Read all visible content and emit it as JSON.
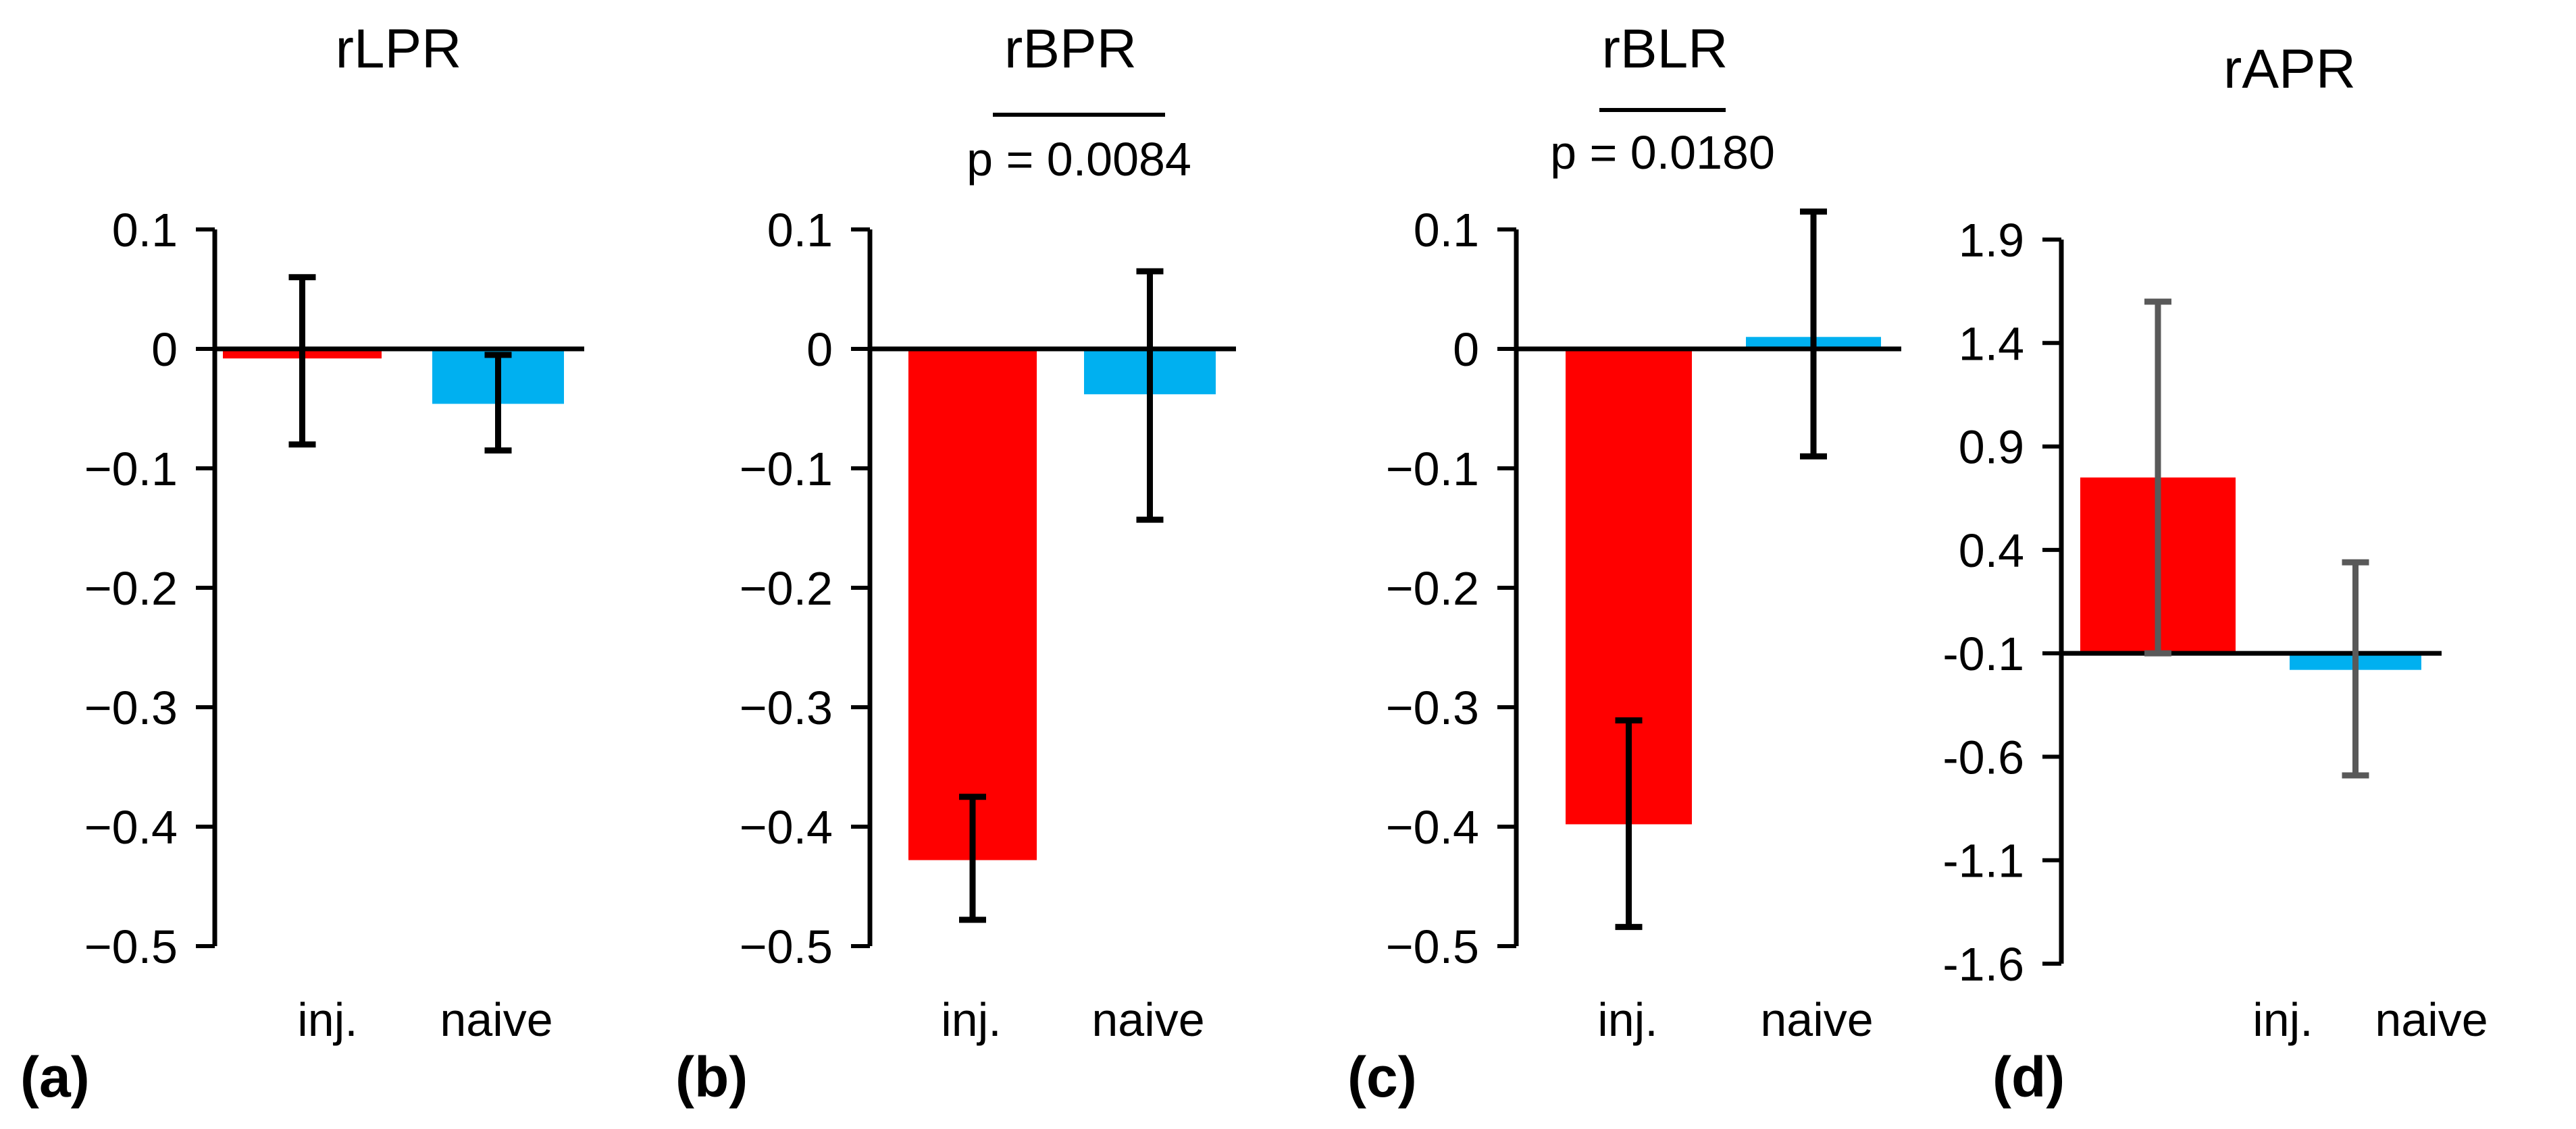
{
  "colors": {
    "injured": "#ff0000",
    "naive": "#00b0f0",
    "axis": "#000000",
    "errorbar_dark": "#000000",
    "errorbar_grey": "#595959"
  },
  "chart_data": [
    {
      "type": "bar",
      "panel_label": "(a)",
      "title": "rLPR",
      "categories": [
        "inj.",
        "naive"
      ],
      "values": [
        -0.008,
        -0.046
      ],
      "errors": [
        [
          -0.08,
          0.06
        ],
        [
          -0.085,
          -0.005
        ]
      ],
      "ylim": [
        -0.5,
        0.1
      ],
      "yticks": [
        0.1,
        0,
        -0.1,
        -0.2,
        -0.3,
        -0.4,
        -0.5
      ],
      "ytick_labels": [
        "0.1",
        "0",
        "−0.1",
        "−0.2",
        "−0.3",
        "−0.4",
        "−0.5"
      ],
      "significance": null
    },
    {
      "type": "bar",
      "panel_label": "(b)",
      "title": "rBPR",
      "categories": [
        "inj.",
        "naive"
      ],
      "values": [
        -0.428,
        -0.038
      ],
      "errors": [
        [
          -0.478,
          -0.375
        ],
        [
          -0.143,
          0.065
        ]
      ],
      "ylim": [
        -0.5,
        0.1
      ],
      "yticks": [
        0.1,
        0,
        -0.1,
        -0.2,
        -0.3,
        -0.4,
        -0.5
      ],
      "ytick_labels": [
        "0.1",
        "0",
        "−0.1",
        "−0.2",
        "−0.3",
        "−0.4",
        "−0.5"
      ],
      "significance": {
        "text": "p = 0.0084"
      }
    },
    {
      "type": "bar",
      "panel_label": "(c)",
      "title": "rBLR",
      "categories": [
        "inj.",
        "naive"
      ],
      "values": [
        -0.398,
        0.01
      ],
      "errors": [
        [
          -0.484,
          -0.311
        ],
        [
          -0.09,
          0.115
        ]
      ],
      "ylim": [
        -0.5,
        0.1
      ],
      "yticks": [
        0.1,
        0,
        -0.1,
        -0.2,
        -0.3,
        -0.4,
        -0.5
      ],
      "ytick_labels": [
        "0.1",
        "0",
        "−0.1",
        "−0.2",
        "−0.3",
        "−0.4",
        "−0.5"
      ],
      "significance": {
        "text": "p = 0.0180"
      }
    },
    {
      "type": "bar",
      "panel_label": "(d)",
      "title": "rAPR",
      "categories": [
        "inj.",
        "naive"
      ],
      "values": [
        0.75,
        -0.18
      ],
      "errors": [
        [
          -0.1,
          1.6
        ],
        [
          -0.69,
          0.34
        ]
      ],
      "ylim": [
        -1.6,
        1.9
      ],
      "yticks": [
        1.9,
        1.4,
        0.9,
        0.4,
        -0.1,
        -0.6,
        -1.1,
        -1.6
      ],
      "ytick_labels": [
        "1.9",
        "1.4",
        "0.9",
        "0.4",
        "-0.1",
        "-0.6",
        "-1.1",
        "-1.6"
      ],
      "baseline": -0.1,
      "significance": null
    }
  ]
}
